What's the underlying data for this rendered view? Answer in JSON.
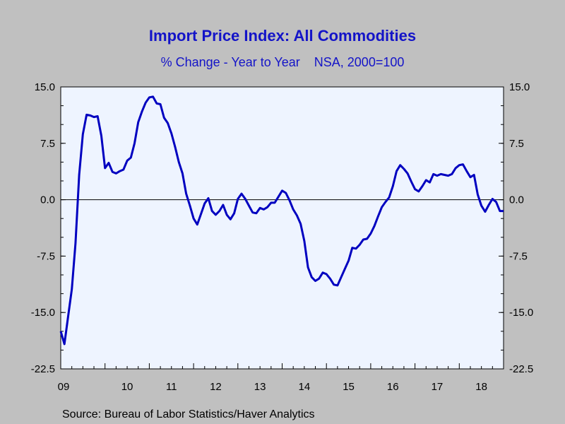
{
  "title": "Import Price Index: All Commodities",
  "subtitle": "% Change - Year to Year    NSA, 2000=100",
  "source": "Source:  Bureau of Labor Statistics/Haver Analytics",
  "colors": {
    "line": "#0000c0",
    "plot_bg": "#eef4ff",
    "page_bg": "#c0c0c0",
    "text": "#1414c8"
  },
  "chart_data": {
    "type": "line",
    "ylim": [
      -22.5,
      15.0
    ],
    "yticks": [
      15.0,
      7.5,
      0.0,
      -7.5,
      -15.0,
      -22.5
    ],
    "ytick_labels": [
      "15.0",
      "7.5",
      "0.0",
      "-7.5",
      "-15.0",
      "-22.5"
    ],
    "xlim": [
      2009.0,
      2019.0
    ],
    "xtick_labels": [
      "09",
      "10",
      "11",
      "12",
      "13",
      "14",
      "15",
      "16",
      "17",
      "18"
    ],
    "zero_line": true,
    "grid": false,
    "series": [
      {
        "x": [
          2009.0,
          2009.083,
          2009.167,
          2009.25,
          2009.333,
          2009.417,
          2009.5,
          2009.583,
          2009.667,
          2009.75,
          2009.833,
          2009.917,
          2010.0,
          2010.083,
          2010.167,
          2010.25,
          2010.333,
          2010.417,
          2010.5,
          2010.583,
          2010.667,
          2010.75,
          2010.833,
          2010.917,
          2011.0,
          2011.083,
          2011.167,
          2011.25,
          2011.333,
          2011.417,
          2011.5,
          2011.583,
          2011.667,
          2011.75,
          2011.833,
          2011.917,
          2012.0,
          2012.083,
          2012.167,
          2012.25,
          2012.333,
          2012.417,
          2012.5,
          2012.583,
          2012.667,
          2012.75,
          2012.833,
          2012.917,
          2013.0,
          2013.083,
          2013.167,
          2013.25,
          2013.333,
          2013.417,
          2013.5,
          2013.583,
          2013.667,
          2013.75,
          2013.833,
          2013.917,
          2014.0,
          2014.083,
          2014.167,
          2014.25,
          2014.333,
          2014.417,
          2014.5,
          2014.583,
          2014.667,
          2014.75,
          2014.833,
          2014.917,
          2015.0,
          2015.083,
          2015.167,
          2015.25,
          2015.333,
          2015.417,
          2015.5,
          2015.583,
          2015.667,
          2015.75,
          2015.833,
          2015.917,
          2016.0,
          2016.083,
          2016.167,
          2016.25,
          2016.333,
          2016.417,
          2016.5,
          2016.583,
          2016.667,
          2016.75,
          2016.833,
          2016.917,
          2017.0,
          2017.083,
          2017.167,
          2017.25,
          2017.333,
          2017.417,
          2017.5,
          2017.583,
          2017.667,
          2017.75,
          2017.833,
          2017.917,
          2018.0,
          2018.083,
          2018.167,
          2018.25,
          2018.333,
          2018.417,
          2018.5,
          2018.583,
          2018.667,
          2018.75,
          2018.833,
          2018.917,
          2019.0
        ],
        "values": [
          -17.5,
          -19.2,
          -15.5,
          -11.9,
          -5.8,
          3.3,
          8.7,
          11.3,
          11.2,
          11.0,
          11.1,
          8.5,
          4.2,
          4.9,
          3.7,
          3.5,
          3.8,
          4.0,
          5.2,
          5.6,
          7.5,
          10.3,
          11.7,
          12.9,
          13.6,
          13.7,
          12.8,
          12.7,
          10.9,
          10.2,
          8.8,
          7.0,
          5.0,
          3.5,
          0.8,
          -0.8,
          -2.5,
          -3.3,
          -1.9,
          -0.5,
          0.2,
          -1.5,
          -2.0,
          -1.5,
          -0.7,
          -2.0,
          -2.6,
          -1.8,
          0.1,
          0.8,
          0.1,
          -0.8,
          -1.7,
          -1.8,
          -1.1,
          -1.3,
          -1.0,
          -0.4,
          -0.4,
          0.4,
          1.2,
          0.9,
          -0.1,
          -1.3,
          -2.1,
          -3.2,
          -5.5,
          -9.0,
          -10.3,
          -10.8,
          -10.5,
          -9.7,
          -9.9,
          -10.5,
          -11.3,
          -11.4,
          -10.3,
          -9.2,
          -8.1,
          -6.4,
          -6.5,
          -6.0,
          -5.3,
          -5.2,
          -4.5,
          -3.5,
          -2.2,
          -1.0,
          -0.3,
          0.3,
          1.8,
          3.8,
          4.6,
          4.1,
          3.5,
          2.4,
          1.4,
          1.1,
          1.8,
          2.6,
          2.3,
          3.4,
          3.2,
          3.4,
          3.3,
          3.2,
          3.4,
          4.2,
          4.6,
          4.7,
          3.8,
          3.0,
          3.3,
          0.7,
          -0.8,
          -1.6,
          -0.7,
          0.1,
          -0.3,
          -1.5,
          -1.5
        ]
      }
    ]
  }
}
